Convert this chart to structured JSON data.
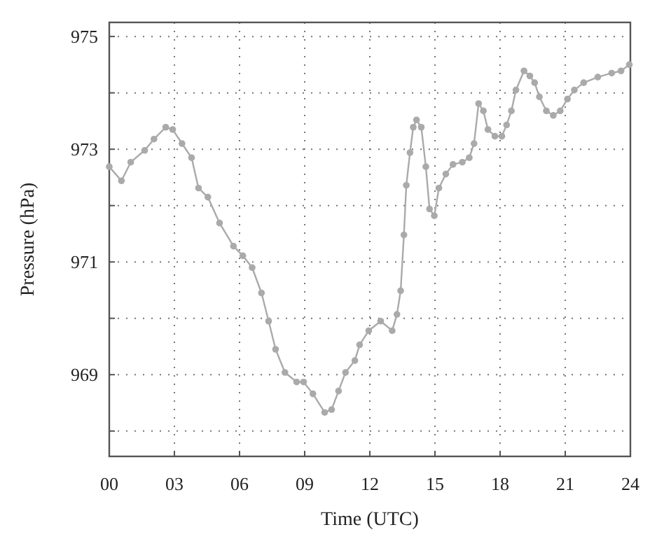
{
  "chart_data": {
    "type": "line",
    "xlabel": "Time (UTC)",
    "ylabel": "Pressure (hPa)",
    "xlim": [
      0,
      24
    ],
    "xticks": [
      {
        "value": 0,
        "label": "00"
      },
      {
        "value": 3,
        "label": "03"
      },
      {
        "value": 6,
        "label": "06"
      },
      {
        "value": 9,
        "label": "09"
      },
      12,
      15,
      18,
      21,
      24
    ],
    "ylim": [
      967.55,
      975.25
    ],
    "yticks": [
      {
        "value": 968,
        "label": null
      },
      969,
      {
        "value": 970,
        "label": null
      },
      971,
      {
        "value": 972,
        "label": null
      },
      973,
      {
        "value": 974,
        "label": null
      },
      975
    ],
    "grid": true,
    "marker": "circle",
    "line_style": "solid",
    "x": [
      0,
      0.56,
      0.99,
      1.63,
      2.06,
      2.6,
      2.92,
      3.35,
      3.79,
      4.11,
      4.54,
      5.08,
      5.72,
      6.15,
      6.58,
      7.01,
      7.34,
      7.66,
      8.09,
      8.63,
      8.95,
      9.38,
      9.92,
      10.24,
      10.56,
      10.88,
      11.31,
      11.53,
      11.95,
      12.5,
      13.03,
      13.25,
      13.42,
      13.57,
      13.68,
      13.85,
      14.0,
      14.15,
      14.37,
      14.58,
      14.75,
      14.97,
      15.18,
      15.5,
      15.83,
      16.26,
      16.58,
      16.8,
      17.01,
      17.23,
      17.44,
      17.76,
      18.08,
      18.3,
      18.52,
      18.73,
      19.1,
      19.37,
      19.59,
      19.81,
      20.13,
      20.45,
      20.77,
      21.1,
      21.42,
      21.85,
      22.5,
      23.14,
      23.57,
      23.95
    ],
    "series": [
      {
        "color": "#aaaaaa",
        "values": [
          972.69,
          972.44,
          972.77,
          972.98,
          973.18,
          973.39,
          973.35,
          973.1,
          972.85,
          972.31,
          972.15,
          971.69,
          971.28,
          971.11,
          970.9,
          970.45,
          969.95,
          969.45,
          969.04,
          968.87,
          968.87,
          968.66,
          968.33,
          968.38,
          968.71,
          969.04,
          969.25,
          969.53,
          969.78,
          969.95,
          969.78,
          970.07,
          970.49,
          971.48,
          972.36,
          972.94,
          973.39,
          973.52,
          973.39,
          972.69,
          971.94,
          971.82,
          972.31,
          972.56,
          972.73,
          972.77,
          972.85,
          973.1,
          973.81,
          973.68,
          973.35,
          973.23,
          973.23,
          973.43,
          973.68,
          974.05,
          974.39,
          974.3,
          974.18,
          973.93,
          973.68,
          973.6,
          973.68,
          973.89,
          974.05,
          974.18,
          974.28,
          974.35,
          974.39,
          974.5
        ]
      }
    ]
  }
}
